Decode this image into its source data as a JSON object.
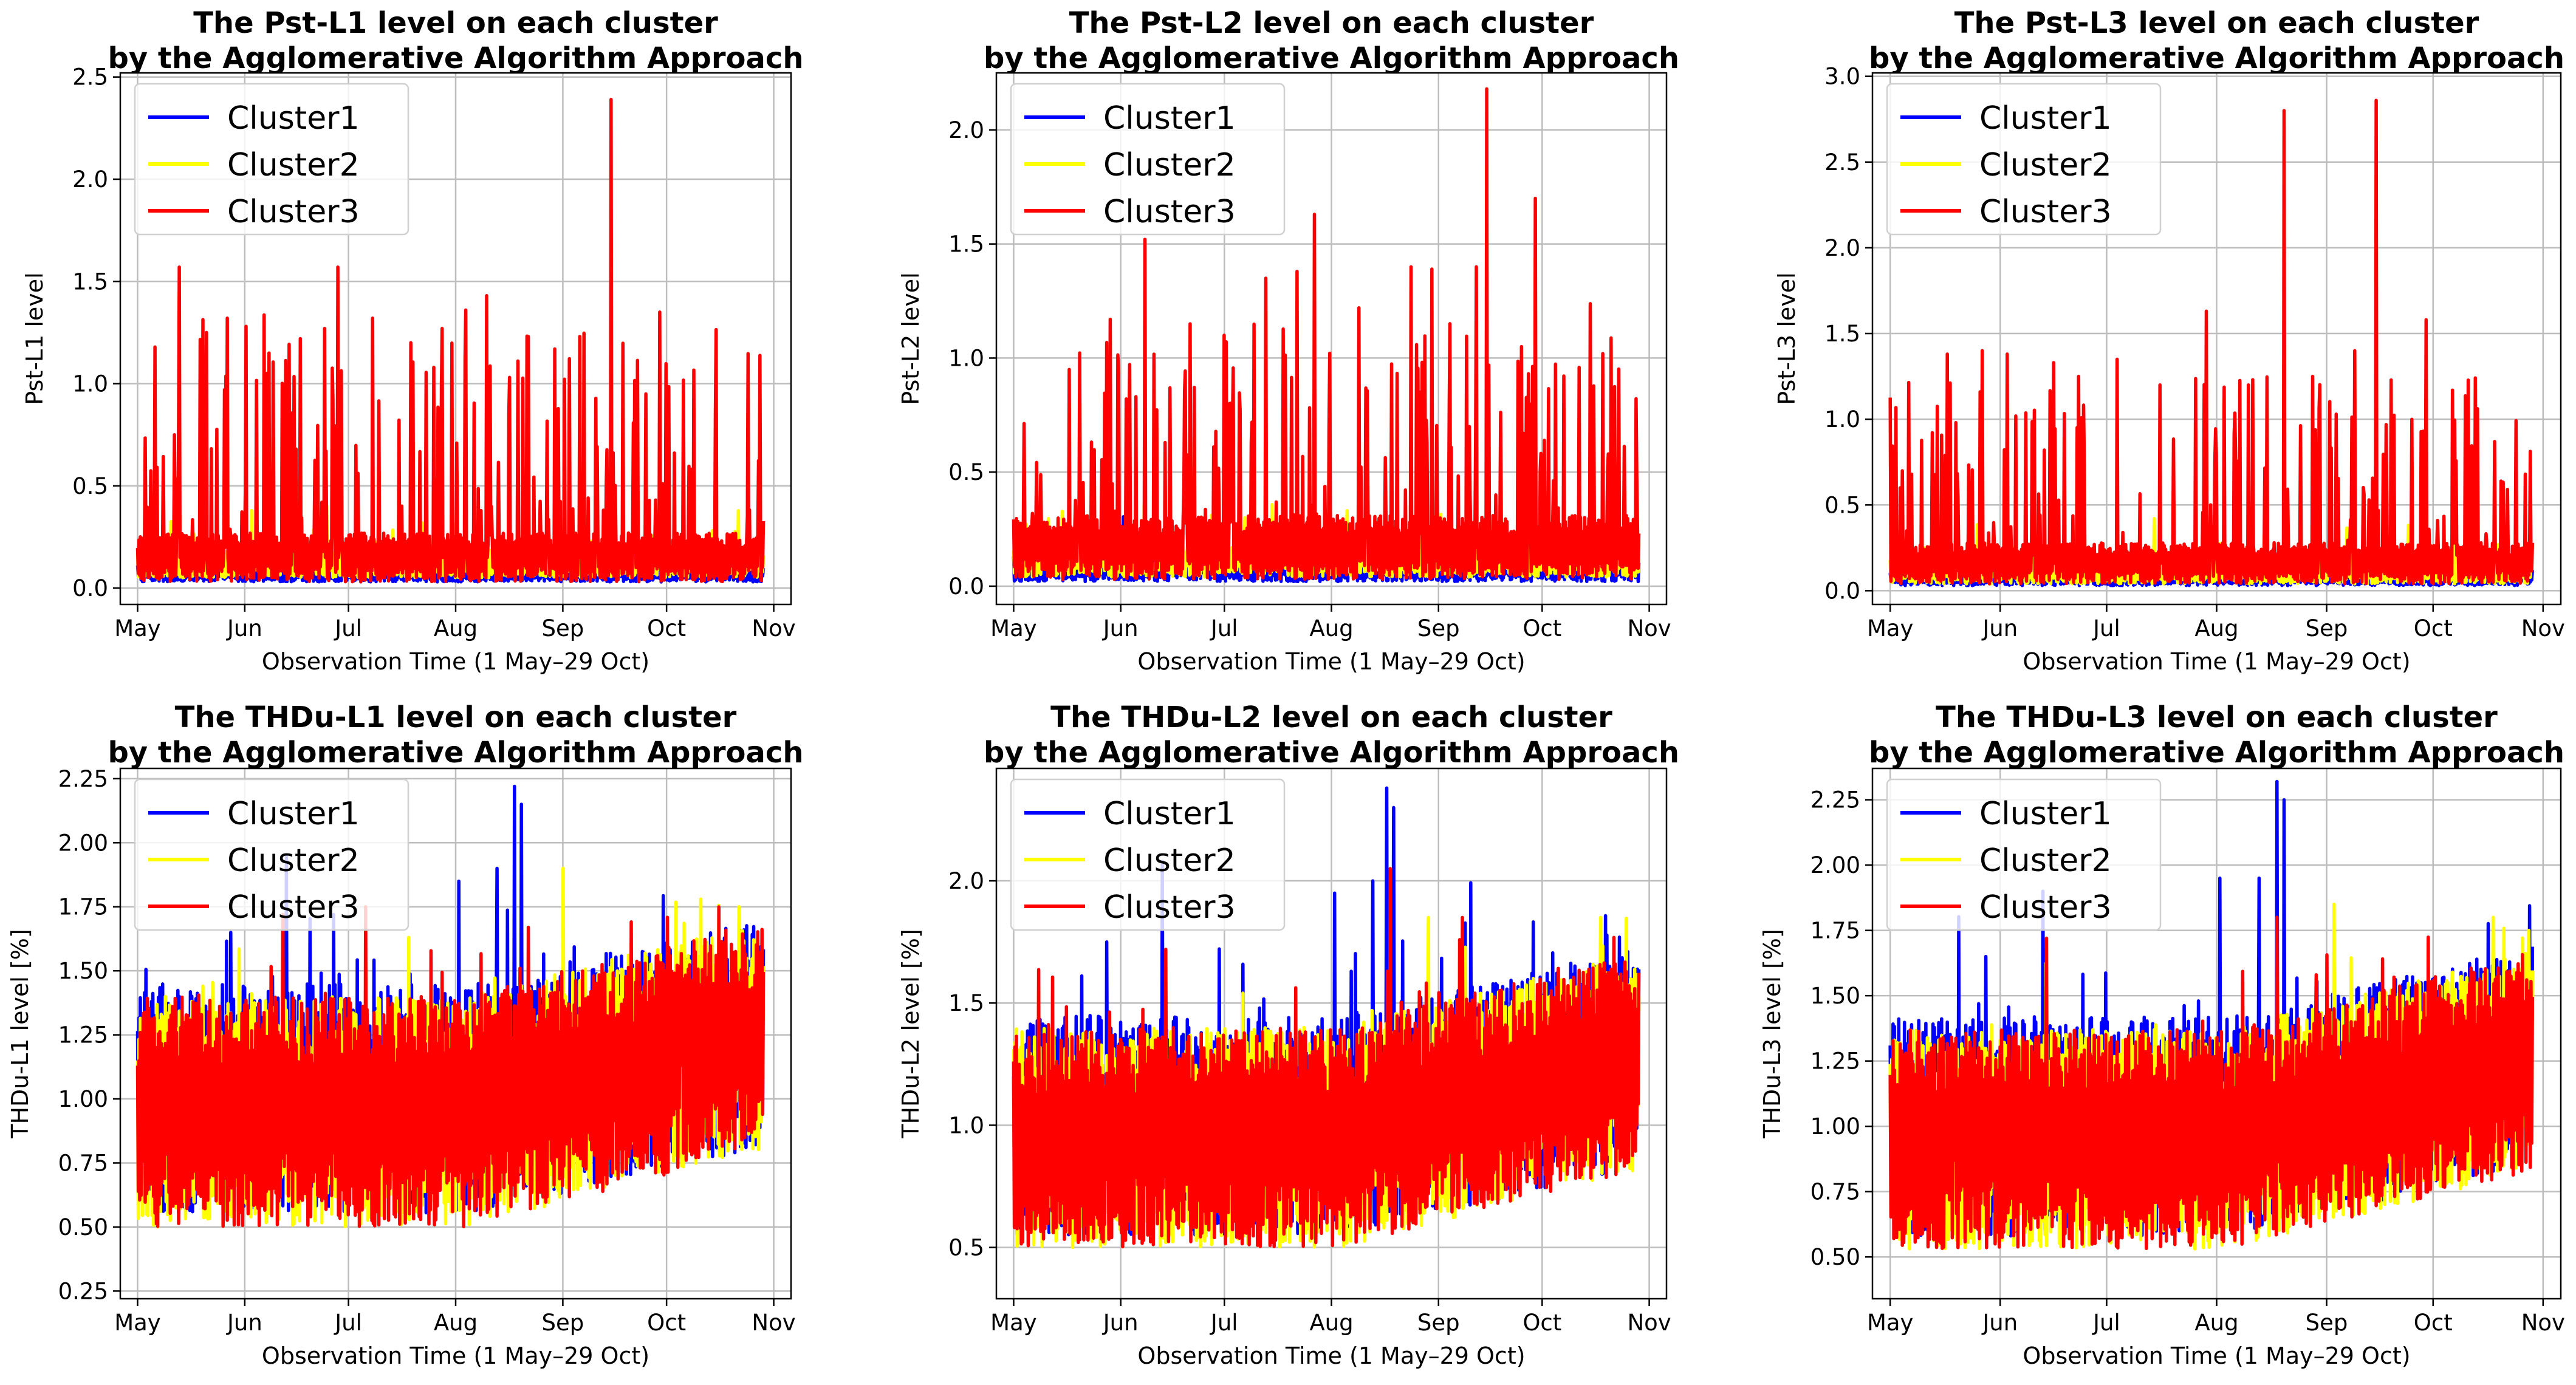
{
  "figure": {
    "legend_labels": [
      "Cluster1",
      "Cluster2",
      "Cluster3"
    ],
    "series_colors": {
      "Cluster1": "#0000ff",
      "Cluster2": "#ffff00",
      "Cluster3": "#ff0000"
    }
  },
  "chart_data": [
    {
      "id": "pst-l1",
      "type": "line",
      "title_line1": "The Pst-L1 level on each cluster",
      "title_line2": "by the Agglomerative Algorithm Approach",
      "xlabel": "Observation Time (1 May–29 Oct)",
      "ylabel": "Pst-L1 level",
      "xticks": [
        "May",
        "Jun",
        "Jul",
        "Aug",
        "Sep",
        "Oct",
        "Nov"
      ],
      "xlim_days": [
        -5,
        189
      ],
      "ylim": [
        -0.08,
        2.52
      ],
      "yticks": [
        0.0,
        0.5,
        1.0,
        1.5,
        2.0,
        2.5
      ],
      "ytick_labels": [
        "0.0",
        "0.5",
        "1.0",
        "1.5",
        "2.0",
        "2.5"
      ],
      "legend": "upper left",
      "series": [
        {
          "name": "Cluster1",
          "color": "#0000ff",
          "x_range_days": [
            0,
            181
          ],
          "baseline": 0.08,
          "amp": 0.05,
          "spike_prob": 0.01,
          "spike_max": 0.2,
          "drift": 0.0
        },
        {
          "name": "Cluster2",
          "color": "#ffff00",
          "x_range_days": [
            0,
            181
          ],
          "baseline": 0.12,
          "amp": 0.07,
          "spike_prob": 0.04,
          "spike_max": 0.25,
          "drift": 0.0
        },
        {
          "name": "Cluster3",
          "color": "#ff0000",
          "x_range_days": [
            0,
            181
          ],
          "baseline": 0.15,
          "amp": 0.12,
          "spike_prob": 0.14,
          "spike_max": 1.1,
          "drift": 0.0,
          "peaks": [
            [
              12,
              1.57
            ],
            [
              20,
              1.25
            ],
            [
              26,
              1.32
            ],
            [
              38,
              1.15
            ],
            [
              47,
              1.22
            ],
            [
              54,
              1.27
            ],
            [
              58,
              1.57
            ],
            [
              68,
              1.32
            ],
            [
              79,
              1.2
            ],
            [
              88,
              1.27
            ],
            [
              95,
              1.36
            ],
            [
              101,
              1.43
            ],
            [
              113,
              1.23
            ],
            [
              128,
              1.23
            ],
            [
              137,
              2.39
            ],
            [
              147,
              0.95
            ],
            [
              151,
              1.35
            ]
          ]
        }
      ]
    },
    {
      "id": "pst-l2",
      "type": "line",
      "title_line1": "The Pst-L2 level on each cluster",
      "title_line2": "by the Agglomerative Algorithm Approach",
      "xlabel": "Observation Time (1 May–29 Oct)",
      "ylabel": "Pst-L2 level",
      "xticks": [
        "May",
        "Jun",
        "Jul",
        "Aug",
        "Sep",
        "Oct",
        "Nov"
      ],
      "xlim_days": [
        -5,
        189
      ],
      "ylim": [
        -0.08,
        2.25
      ],
      "yticks": [
        0.0,
        0.5,
        1.0,
        1.5,
        2.0
      ],
      "ytick_labels": [
        "0.0",
        "0.5",
        "1.0",
        "1.5",
        "2.0"
      ],
      "legend": "upper left",
      "series": [
        {
          "name": "Cluster1",
          "color": "#0000ff",
          "x_range_days": [
            0,
            181
          ],
          "baseline": 0.08,
          "amp": 0.06,
          "spike_prob": 0.01,
          "spike_max": 0.2,
          "drift": 0.0
        },
        {
          "name": "Cluster2",
          "color": "#ffff00",
          "x_range_days": [
            0,
            181
          ],
          "baseline": 0.12,
          "amp": 0.08,
          "spike_prob": 0.04,
          "spike_max": 0.25,
          "drift": 0.0
        },
        {
          "name": "Cluster3",
          "color": "#ff0000",
          "x_range_days": [
            0,
            181
          ],
          "baseline": 0.17,
          "amp": 0.14,
          "spike_prob": 0.15,
          "spike_max": 0.95,
          "drift": 0.0,
          "peaks": [
            [
              16,
              0.95
            ],
            [
              28,
              1.17
            ],
            [
              38,
              1.52
            ],
            [
              51,
              1.15
            ],
            [
              61,
              1.1
            ],
            [
              73,
              1.35
            ],
            [
              82,
              1.38
            ],
            [
              87,
              1.63
            ],
            [
              100,
              1.22
            ],
            [
              115,
              1.4
            ],
            [
              121,
              1.39
            ],
            [
              134,
              1.4
            ],
            [
              137,
              2.18
            ],
            [
              147,
              1.05
            ],
            [
              151,
              1.7
            ]
          ]
        }
      ]
    },
    {
      "id": "pst-l3",
      "type": "line",
      "title_line1": "The Pst-L3 level on each cluster",
      "title_line2": "by the Agglomerative Algorithm Approach",
      "xlabel": "Observation Time (1 May–29 Oct)",
      "ylabel": "Pst-L3 level",
      "xticks": [
        "May",
        "Jun",
        "Jul",
        "Aug",
        "Sep",
        "Oct",
        "Nov"
      ],
      "xlim_days": [
        -5,
        189
      ],
      "ylim": [
        -0.08,
        3.02
      ],
      "yticks": [
        0.0,
        0.5,
        1.0,
        1.5,
        2.0,
        2.5,
        3.0
      ],
      "ytick_labels": [
        "0.0",
        "0.5",
        "1.0",
        "1.5",
        "2.0",
        "2.5",
        "3.0"
      ],
      "legend": "upper left",
      "series": [
        {
          "name": "Cluster1",
          "color": "#0000ff",
          "x_range_days": [
            0,
            181
          ],
          "baseline": 0.08,
          "amp": 0.05,
          "spike_prob": 0.01,
          "spike_max": 0.2,
          "drift": 0.0
        },
        {
          "name": "Cluster2",
          "color": "#ffff00",
          "x_range_days": [
            0,
            181
          ],
          "baseline": 0.12,
          "amp": 0.08,
          "spike_prob": 0.04,
          "spike_max": 0.3,
          "drift": 0.0
        },
        {
          "name": "Cluster3",
          "color": "#ff0000",
          "x_range_days": [
            0,
            181
          ],
          "baseline": 0.16,
          "amp": 0.12,
          "spike_prob": 0.13,
          "spike_max": 1.0,
          "drift": 0.0,
          "peaks": [
            [
              16,
              1.38
            ],
            [
              26,
              1.4
            ],
            [
              33,
              1.38
            ],
            [
              46,
              1.33
            ],
            [
              53,
              1.25
            ],
            [
              64,
              1.35
            ],
            [
              76,
              1.2
            ],
            [
              89,
              1.63
            ],
            [
              101,
              1.2
            ],
            [
              111,
              2.8
            ],
            [
              119,
              1.25
            ],
            [
              131,
              1.4
            ],
            [
              137,
              2.86
            ],
            [
              147,
              1.0
            ],
            [
              151,
              1.58
            ]
          ]
        }
      ]
    },
    {
      "id": "thdu-l1",
      "type": "line",
      "title_line1": "The THDu-L1 level on each cluster",
      "title_line2": "by the Agglomerative Algorithm Approach",
      "xlabel": "Observation Time (1 May–29 Oct)",
      "ylabel": "THDu-L1 level [%]",
      "xticks": [
        "May",
        "Jun",
        "Jul",
        "Aug",
        "Sep",
        "Oct",
        "Nov"
      ],
      "xlim_days": [
        -5,
        189
      ],
      "ylim": [
        0.22,
        2.29
      ],
      "yticks": [
        0.25,
        0.5,
        0.75,
        1.0,
        1.25,
        1.5,
        1.75,
        2.0,
        2.25
      ],
      "ytick_labels": [
        "0.25",
        "0.50",
        "0.75",
        "1.00",
        "1.25",
        "1.50",
        "1.75",
        "2.00",
        "2.25"
      ],
      "legend": "upper left",
      "series": [
        {
          "name": "Cluster1",
          "color": "#0000ff",
          "x_range_days": [
            0,
            181
          ],
          "baseline": 1.0,
          "amp": 0.45,
          "spike_prob": 0.05,
          "spike_max": 0.4,
          "drift": 0.25,
          "peaks": [
            [
              109,
              2.22
            ],
            [
              111,
              2.15
            ],
            [
              104,
              1.9
            ],
            [
              93,
              1.85
            ],
            [
              43,
              1.95
            ],
            [
              27,
              1.65
            ]
          ]
        },
        {
          "name": "Cluster2",
          "color": "#ffff00",
          "x_range_days": [
            0,
            181
          ],
          "baseline": 0.95,
          "amp": 0.45,
          "spike_prob": 0.03,
          "spike_max": 0.3,
          "drift": 0.3,
          "peaks": [
            [
              123,
              1.9
            ],
            [
              174,
              1.75
            ],
            [
              163,
              1.78
            ]
          ]
        },
        {
          "name": "Cluster3",
          "color": "#ff0000",
          "x_range_days": [
            0,
            181
          ],
          "baseline": 0.95,
          "amp": 0.45,
          "spike_prob": 0.04,
          "spike_max": 0.35,
          "drift": 0.3,
          "peaks": [
            [
              42,
              1.72
            ],
            [
              66,
              1.75
            ],
            [
              113,
              1.67
            ]
          ]
        }
      ]
    },
    {
      "id": "thdu-l2",
      "type": "line",
      "title_line1": "The THDu-L2 level on each cluster",
      "title_line2": "by the Agglomerative Algorithm Approach",
      "xlabel": "Observation Time (1 May–29 Oct)",
      "ylabel": "THDu-L2 level [%]",
      "xticks": [
        "May",
        "Jun",
        "Jul",
        "Aug",
        "Sep",
        "Oct",
        "Nov"
      ],
      "xlim_days": [
        -5,
        189
      ],
      "ylim": [
        0.29,
        2.46
      ],
      "yticks": [
        0.5,
        1.0,
        1.5,
        2.0
      ],
      "ytick_labels": [
        "0.5",
        "1.0",
        "1.5",
        "2.0"
      ],
      "legend": "upper left",
      "series": [
        {
          "name": "Cluster1",
          "color": "#0000ff",
          "x_range_days": [
            0,
            181
          ],
          "baseline": 1.0,
          "amp": 0.45,
          "spike_prob": 0.05,
          "spike_max": 0.45,
          "drift": 0.28,
          "peaks": [
            [
              108,
              2.38
            ],
            [
              110,
              2.3
            ],
            [
              104,
              2.0
            ],
            [
              93,
              1.95
            ],
            [
              43,
              2.08
            ],
            [
              27,
              1.75
            ]
          ]
        },
        {
          "name": "Cluster2",
          "color": "#ffff00",
          "x_range_days": [
            0,
            181
          ],
          "baseline": 0.95,
          "amp": 0.45,
          "spike_prob": 0.03,
          "spike_max": 0.3,
          "drift": 0.32,
          "peaks": [
            [
              120,
              1.85
            ],
            [
              170,
              1.85
            ]
          ]
        },
        {
          "name": "Cluster3",
          "color": "#ff0000",
          "x_range_days": [
            0,
            181
          ],
          "baseline": 0.95,
          "amp": 0.45,
          "spike_prob": 0.04,
          "spike_max": 0.35,
          "drift": 0.32,
          "peaks": [
            [
              44,
              1.72
            ],
            [
              109,
              2.05
            ],
            [
              130,
              1.85
            ]
          ]
        }
      ]
    },
    {
      "id": "thdu-l3",
      "type": "line",
      "title_line1": "The THDu-L3 level on each cluster",
      "title_line2": "by the Agglomerative Algorithm Approach",
      "xlabel": "Observation Time (1 May–29 Oct)",
      "ylabel": "THDu-L3 level [%]",
      "xticks": [
        "May",
        "Jun",
        "Jul",
        "Aug",
        "Sep",
        "Oct",
        "Nov"
      ],
      "xlim_days": [
        -5,
        189
      ],
      "ylim": [
        0.34,
        2.37
      ],
      "yticks": [
        0.5,
        0.75,
        1.0,
        1.25,
        1.5,
        1.75,
        2.0,
        2.25
      ],
      "ytick_labels": [
        "0.50",
        "0.75",
        "1.00",
        "1.25",
        "1.50",
        "1.75",
        "2.00",
        "2.25"
      ],
      "legend": "upper left",
      "series": [
        {
          "name": "Cluster1",
          "color": "#0000ff",
          "x_range_days": [
            0,
            181
          ],
          "baseline": 1.0,
          "amp": 0.42,
          "spike_prob": 0.05,
          "spike_max": 0.4,
          "drift": 0.27,
          "peaks": [
            [
              109,
              2.32
            ],
            [
              111,
              2.25
            ],
            [
              104,
              1.95
            ],
            [
              93,
              1.95
            ],
            [
              43,
              1.9
            ],
            [
              27,
              1.65
            ]
          ]
        },
        {
          "name": "Cluster2",
          "color": "#ffff00",
          "x_range_days": [
            0,
            181
          ],
          "baseline": 0.95,
          "amp": 0.42,
          "spike_prob": 0.03,
          "spike_max": 0.3,
          "drift": 0.3,
          "peaks": [
            [
              125,
              1.85
            ],
            [
              170,
              1.8
            ],
            [
              180,
              1.75
            ]
          ]
        },
        {
          "name": "Cluster3",
          "color": "#ff0000",
          "x_range_days": [
            0,
            181
          ],
          "baseline": 0.95,
          "amp": 0.42,
          "spike_prob": 0.04,
          "spike_max": 0.35,
          "drift": 0.3,
          "peaks": [
            [
              44,
              1.72
            ],
            [
              109,
              1.8
            ],
            [
              120,
              1.58
            ]
          ]
        }
      ]
    }
  ]
}
